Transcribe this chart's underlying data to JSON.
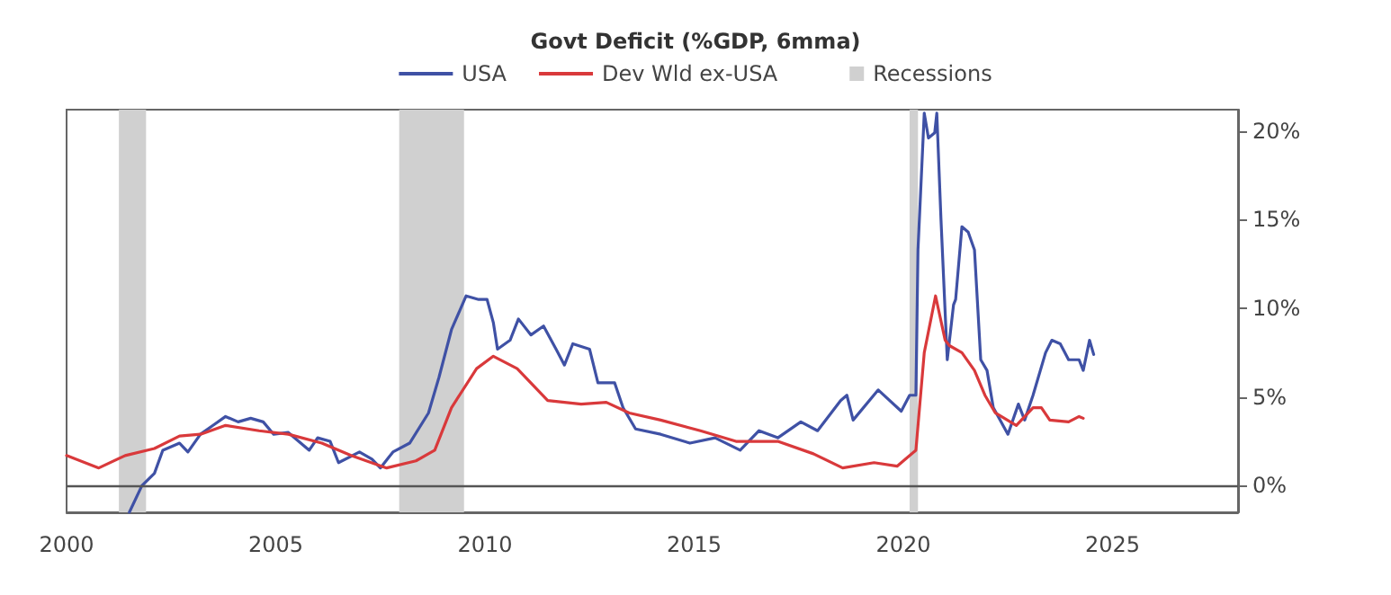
{
  "chart_data": {
    "type": "line",
    "title": "Govt Deficit (%GDP, 6mma)",
    "series": [
      {
        "name": "USA",
        "color": "#3f51a5",
        "x": [
          2001.5,
          2001.8,
          2002.1,
          2002.3,
          2002.7,
          2002.9,
          2003.2,
          2003.5,
          2003.8,
          2004.1,
          2004.4,
          2004.7,
          2004.95,
          2005.3,
          2005.8,
          2006.0,
          2006.3,
          2006.5,
          2007.0,
          2007.3,
          2007.5,
          2007.8,
          2008.2,
          2008.65,
          2008.9,
          2009.2,
          2009.55,
          2009.85,
          2010.05,
          2010.2,
          2010.3,
          2010.6,
          2010.8,
          2011.1,
          2011.4,
          2011.7,
          2011.9,
          2012.1,
          2012.5,
          2012.7,
          2013.1,
          2013.3,
          2013.6,
          2014.2,
          2014.9,
          2015.5,
          2016.1,
          2016.55,
          2017.0,
          2017.55,
          2017.95,
          2018.5,
          2018.65,
          2018.8,
          2019.4,
          2019.95,
          2020.15,
          2020.3,
          2020.35,
          2020.5,
          2020.6,
          2020.75,
          2020.8,
          2020.9,
          2021.05,
          2021.2,
          2021.25,
          2021.4,
          2021.55,
          2021.7,
          2021.85,
          2022.0,
          2022.15,
          2022.5,
          2022.75,
          2022.9,
          2023.1,
          2023.4,
          2023.55,
          2023.75,
          2023.95,
          2024.2,
          2024.3,
          2024.45,
          2024.55
        ],
        "values": [
          -1.5,
          0,
          0.7,
          2.0,
          2.4,
          1.9,
          2.9,
          3.4,
          3.9,
          3.6,
          3.8,
          3.6,
          2.9,
          3.0,
          2.0,
          2.7,
          2.5,
          1.3,
          1.9,
          1.5,
          1.0,
          1.9,
          2.4,
          4.1,
          6.1,
          8.8,
          10.7,
          10.5,
          10.5,
          9.2,
          7.7,
          8.2,
          9.4,
          8.5,
          9.0,
          7.7,
          6.8,
          8.0,
          7.7,
          5.8,
          5.8,
          4.4,
          3.2,
          2.9,
          2.4,
          2.7,
          2.0,
          3.1,
          2.7,
          3.6,
          3.1,
          4.8,
          5.1,
          3.7,
          5.4,
          4.2,
          5.1,
          5.1,
          13.3,
          21.0,
          19.6,
          19.9,
          21.0,
          15.0,
          7.1,
          10.2,
          10.5,
          14.6,
          14.3,
          13.3,
          7.1,
          6.5,
          4.4,
          2.9,
          4.6,
          3.7,
          5.1,
          7.5,
          8.2,
          8.0,
          7.1,
          7.1,
          6.5,
          8.2,
          7.4
        ]
      },
      {
        "name": "Dev Wld ex-USA",
        "color": "#d9393b",
        "x": [
          2000.0,
          2000.77,
          2001.4,
          2002.1,
          2002.7,
          2003.2,
          2003.8,
          2004.6,
          2005.3,
          2006.1,
          2006.8,
          2007.65,
          2008.35,
          2008.8,
          2009.2,
          2009.8,
          2010.2,
          2010.77,
          2011.5,
          2012.3,
          2012.9,
          2013.45,
          2014.2,
          2015.15,
          2016.0,
          2017.0,
          2017.85,
          2018.55,
          2019.3,
          2019.85,
          2020.3,
          2020.5,
          2020.77,
          2021.0,
          2021.1,
          2021.4,
          2021.7,
          2021.95,
          2022.2,
          2022.7,
          2023.1,
          2023.3,
          2023.5,
          2023.95,
          2024.2,
          2024.3
        ],
        "values": [
          1.7,
          1.0,
          1.7,
          2.1,
          2.8,
          2.9,
          3.4,
          3.1,
          2.9,
          2.4,
          1.7,
          1.0,
          1.4,
          2.0,
          4.4,
          6.6,
          7.3,
          6.6,
          4.8,
          4.6,
          4.7,
          4.1,
          3.7,
          3.1,
          2.5,
          2.5,
          1.8,
          1.0,
          1.3,
          1.1,
          2.0,
          7.5,
          10.7,
          8.2,
          7.9,
          7.5,
          6.5,
          5.1,
          4.1,
          3.4,
          4.4,
          4.4,
          3.7,
          3.6,
          3.9,
          3.8
        ]
      }
    ],
    "bands": [
      {
        "axis": "x",
        "from": 2001.25,
        "to": 2001.9,
        "label": "Recessions",
        "color": "#d0d0d0"
      },
      {
        "axis": "x",
        "from": 2007.95,
        "to": 2009.5,
        "color": "#d0d0d0"
      },
      {
        "axis": "x",
        "from": 2020.15,
        "to": 2020.35,
        "color": "#d0d0d0"
      }
    ],
    "ref_lines": [
      {
        "axis": "y",
        "value": 0,
        "color": "#555555"
      }
    ],
    "xlim": [
      2000,
      2028
    ],
    "xticks": [
      2000,
      2005,
      2010,
      2015,
      2020,
      2025
    ],
    "ylim": [
      -1.5,
      21.2
    ],
    "yticks": [
      {
        "value": 0,
        "label": "0%"
      },
      {
        "value": 5,
        "label": "5%"
      },
      {
        "value": 10,
        "label": "10%"
      },
      {
        "value": 15,
        "label": "15%"
      },
      {
        "value": 20,
        "label": "20%"
      }
    ],
    "grid": false,
    "legend": "top",
    "marker": "none",
    "line_style": "solid"
  }
}
